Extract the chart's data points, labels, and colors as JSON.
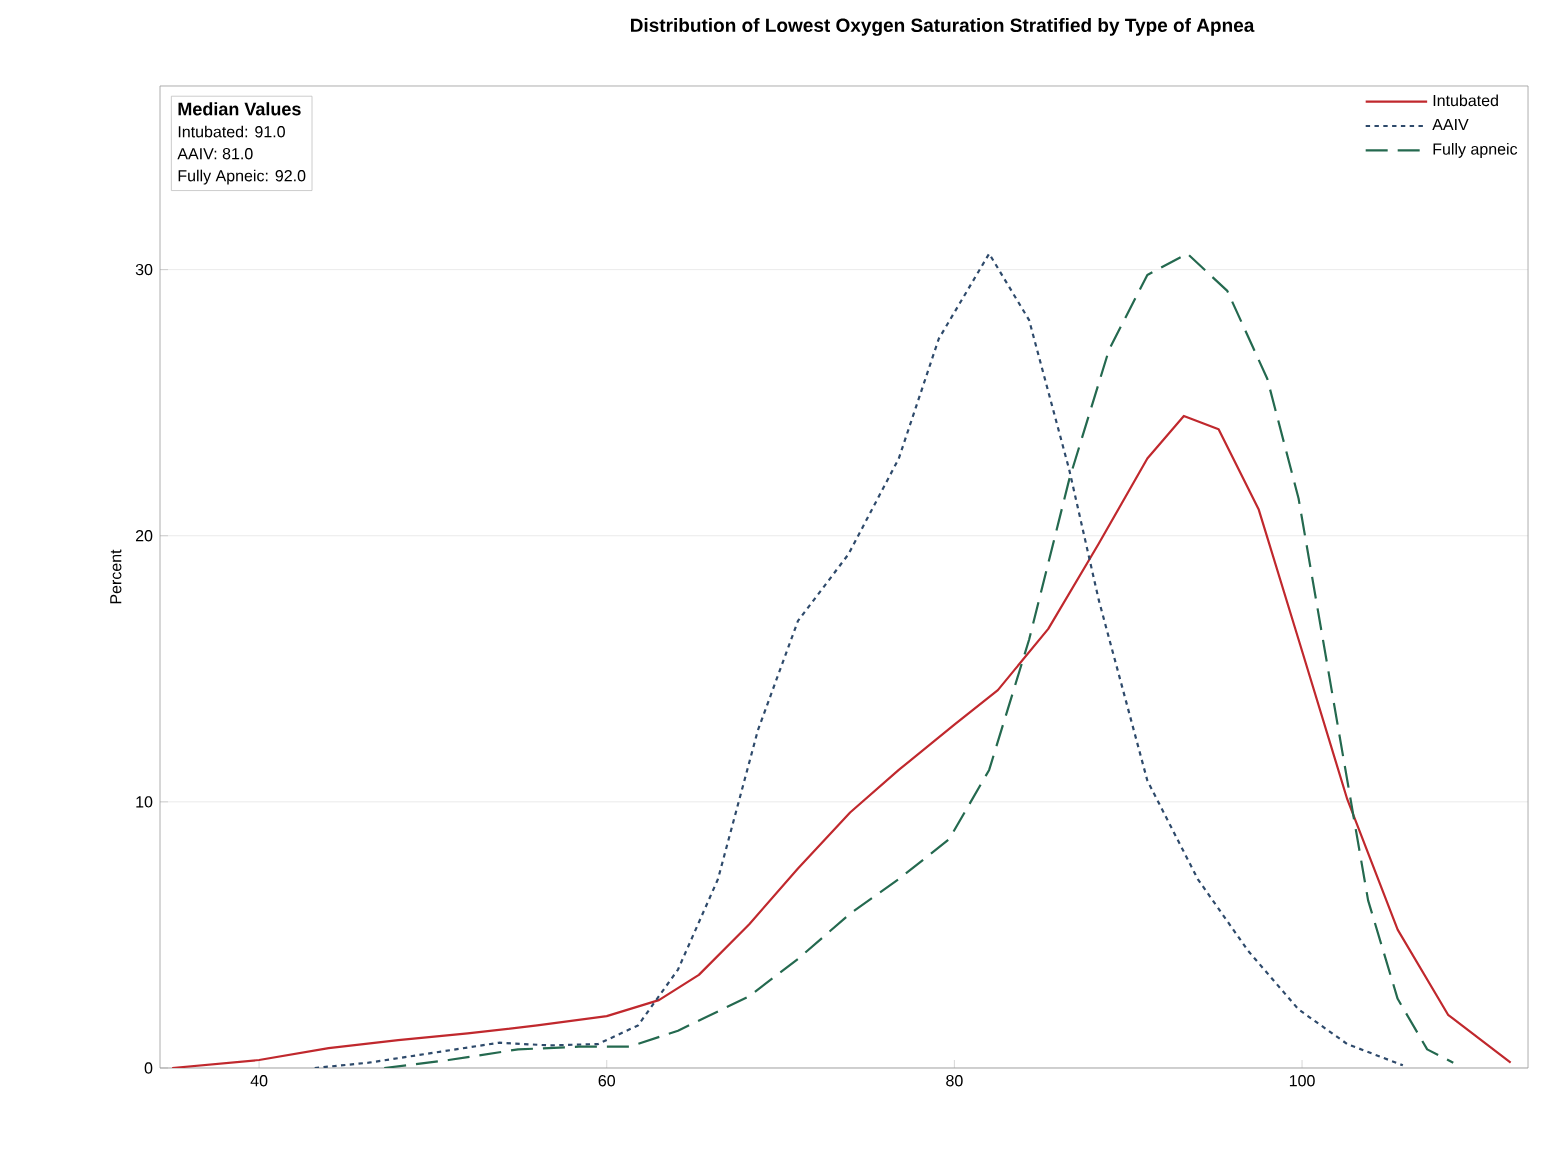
{
  "chart_data": {
    "type": "line",
    "title": "Distribution of Lowest Oxygen Saturation Stratified by Type of Apnea",
    "ylabel": "Percent",
    "xlim": [
      34.3,
      113
    ],
    "ylim": [
      0,
      36.9
    ],
    "xticks": [
      40,
      60,
      80,
      100
    ],
    "yticks": [
      0,
      10,
      20,
      30
    ],
    "grid": "y",
    "legend": "top right",
    "annotations": [
      "Median Values",
      "Intubated: 91.0",
      "AAIV: 81.0",
      "Fully Apneic: 92.0"
    ],
    "series": [
      {
        "name": "Intubated",
        "color": "#c0282d",
        "line_style": "solid",
        "x": [
          35.0,
          40,
          44,
          48,
          52,
          56,
          60,
          63,
          65.3,
          68.2,
          71,
          74,
          76.8,
          80,
          82.5,
          85.4,
          88.3,
          91.1,
          93.2,
          95.2,
          97.5,
          99.8,
          102.6,
          105.5,
          108.4,
          112
        ],
        "values": [
          0,
          0.3,
          0.75,
          1.05,
          1.3,
          1.6,
          1.95,
          2.55,
          3.5,
          5.4,
          7.5,
          9.6,
          11.2,
          12.9,
          14.2,
          16.5,
          19.7,
          22.9,
          24.5,
          24.0,
          21,
          16.1,
          10.1,
          5.2,
          2.0,
          0.2
        ]
      },
      {
        "name": "AAIV",
        "color": "#2e4a6b",
        "line_style": "dotted",
        "x": [
          43.2,
          46.3,
          49.8,
          53.8,
          56.7,
          59.5,
          61.8,
          64.1,
          66.4,
          68.7,
          71,
          73.9,
          76.8,
          79.1,
          82,
          84.3,
          86.6,
          88.3,
          91.1,
          94,
          96.9,
          99.8,
          102.6,
          105.8
        ],
        "values": [
          0,
          0.2,
          0.55,
          0.95,
          0.85,
          0.9,
          1.6,
          3.7,
          7.1,
          12.7,
          16.8,
          19.3,
          22.9,
          27.4,
          30.6,
          28.1,
          22.5,
          17.6,
          10.8,
          7.1,
          4.4,
          2.2,
          0.9,
          0.1
        ]
      },
      {
        "name": "Fully apneic",
        "color": "#24694f",
        "line_style": "dashed",
        "x": [
          47.2,
          50.9,
          54.9,
          58.4,
          61.3,
          64.1,
          68.2,
          71,
          74,
          76.8,
          79.7,
          82,
          84.3,
          86.6,
          88.9,
          91.1,
          93.4,
          95.7,
          98,
          99.8,
          102.1,
          103.8,
          105.5,
          107.2,
          108.7
        ],
        "values": [
          0,
          0.3,
          0.7,
          0.8,
          0.8,
          1.4,
          2.7,
          4.1,
          5.8,
          7.1,
          8.6,
          11.2,
          16.1,
          22.1,
          27.0,
          29.8,
          30.6,
          29.2,
          25.9,
          21.4,
          12.7,
          6.3,
          2.6,
          0.7,
          0.2
        ]
      }
    ]
  }
}
